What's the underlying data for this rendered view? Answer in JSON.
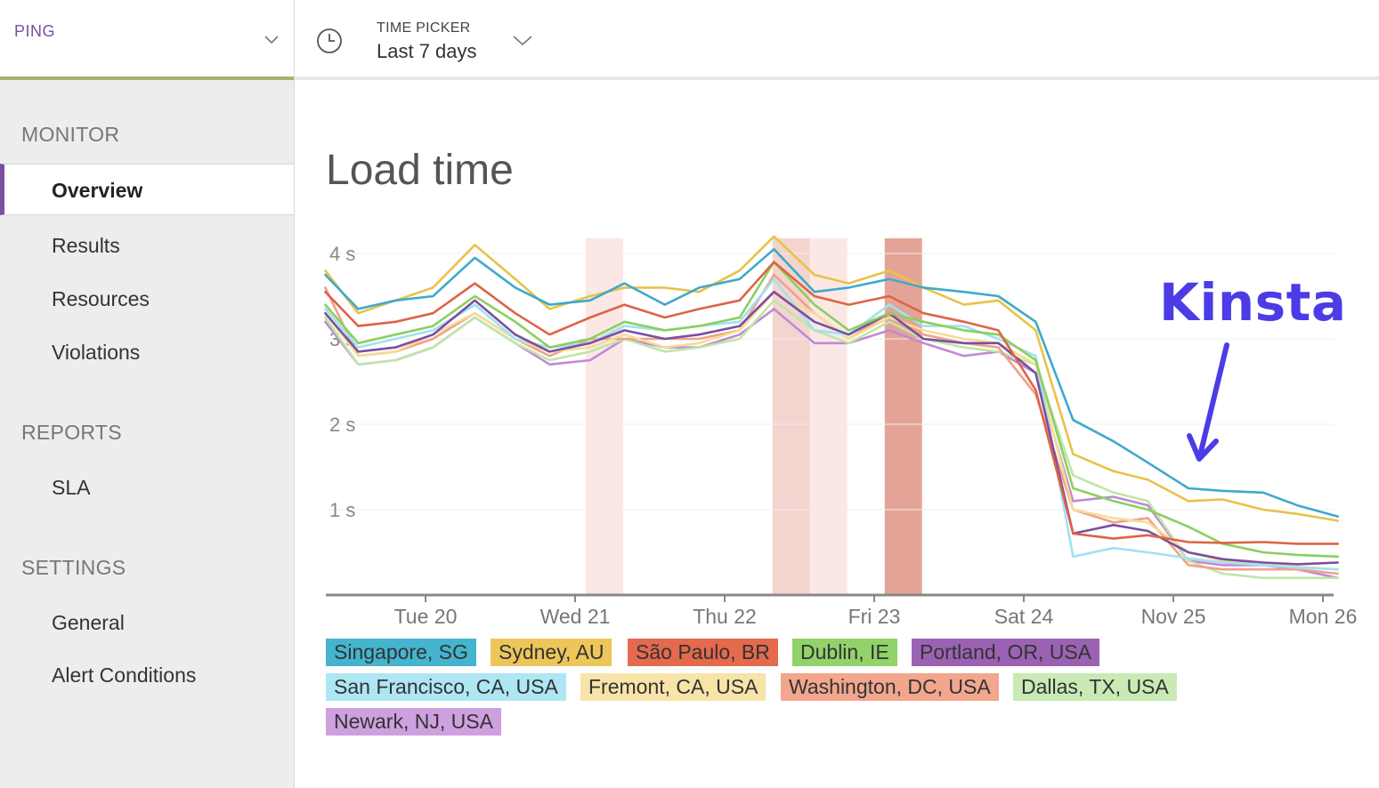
{
  "app": {
    "name": "PING"
  },
  "time_picker": {
    "label": "TIME PICKER",
    "value": "Last 7 days"
  },
  "sidebar": {
    "sections": [
      {
        "title": "MONITOR",
        "items": [
          "Overview",
          "Results",
          "Resources",
          "Violations"
        ]
      },
      {
        "title": "REPORTS",
        "items": [
          "SLA"
        ]
      },
      {
        "title": "SETTINGS",
        "items": [
          "General",
          "Alert Conditions"
        ]
      }
    ],
    "active_item": "Overview",
    "accent_color": "#7a4fa0"
  },
  "page": {
    "title": "Load time"
  },
  "annotation": {
    "text": "Kinsta",
    "color": "#4b3ce6"
  },
  "chart_data": {
    "type": "line",
    "title": "Load time",
    "xlabel": "",
    "ylabel": "",
    "x_tick_labels": [
      "Tue 20",
      "Wed 21",
      "Thu 22",
      "Fri 23",
      "Sat 24",
      "Nov 25",
      "Mon 26"
    ],
    "x_range": [
      -0.67,
      6.1
    ],
    "y_ticks": [
      {
        "value": 1,
        "label": "1 s"
      },
      {
        "value": 2,
        "label": "2 s"
      },
      {
        "value": 3,
        "label": "3 s"
      },
      {
        "value": 4,
        "label": "4 s"
      }
    ],
    "ylim": [
      0,
      4.2
    ],
    "grid": true,
    "x": [
      -0.67,
      -0.45,
      -0.2,
      0.05,
      0.33,
      0.6,
      0.83,
      1.1,
      1.33,
      1.6,
      1.83,
      2.1,
      2.33,
      2.6,
      2.83,
      3.1,
      3.33,
      3.6,
      3.83,
      4.08,
      4.33,
      4.6,
      4.83,
      5.1,
      5.33,
      5.6,
      5.83,
      6.1
    ],
    "highlight_bands": [
      {
        "from": 1.07,
        "to": 1.32,
        "intensity": "light"
      },
      {
        "from": 2.32,
        "to": 2.57,
        "intensity": "medium"
      },
      {
        "from": 2.57,
        "to": 2.82,
        "intensity": "light"
      },
      {
        "from": 3.07,
        "to": 3.32,
        "intensity": "strong"
      }
    ],
    "legend_position": "bottom",
    "series": [
      {
        "name": "Singapore, SG",
        "color": "#3fa9c9",
        "legend_bg": "#45b4cf",
        "values": [
          3.75,
          3.35,
          3.45,
          3.5,
          3.95,
          3.6,
          3.4,
          3.45,
          3.65,
          3.4,
          3.6,
          3.7,
          4.05,
          3.55,
          3.6,
          3.7,
          3.6,
          3.55,
          3.5,
          3.2,
          2.05,
          1.8,
          1.55,
          1.25,
          1.22,
          1.2,
          1.05,
          0.92
        ]
      },
      {
        "name": "Sydney, AU",
        "color": "#e8c24a",
        "legend_bg": "#edc65a",
        "values": [
          3.8,
          3.3,
          3.45,
          3.6,
          4.1,
          3.7,
          3.35,
          3.5,
          3.6,
          3.6,
          3.55,
          3.8,
          4.2,
          3.75,
          3.65,
          3.8,
          3.6,
          3.4,
          3.45,
          3.1,
          1.65,
          1.45,
          1.35,
          1.1,
          1.12,
          1.0,
          0.95,
          0.87
        ]
      },
      {
        "name": "São Paulo, BR",
        "color": "#df6347",
        "legend_bg": "#e4694d",
        "values": [
          3.55,
          3.15,
          3.2,
          3.3,
          3.65,
          3.3,
          3.05,
          3.25,
          3.4,
          3.25,
          3.35,
          3.45,
          3.9,
          3.5,
          3.4,
          3.5,
          3.3,
          3.2,
          3.1,
          2.4,
          0.72,
          0.66,
          0.7,
          0.62,
          0.61,
          0.62,
          0.6,
          0.6
        ]
      },
      {
        "name": "Dublin, IE",
        "color": "#8ccf5e",
        "legend_bg": "#91d26a",
        "values": [
          3.4,
          2.95,
          3.05,
          3.15,
          3.5,
          3.2,
          2.9,
          3.0,
          3.2,
          3.1,
          3.15,
          3.25,
          3.9,
          3.4,
          3.1,
          3.3,
          3.2,
          3.1,
          3.05,
          2.75,
          1.25,
          1.1,
          1.0,
          0.8,
          0.6,
          0.5,
          0.47,
          0.45
        ]
      },
      {
        "name": "Portland, OR, USA",
        "color": "#7a4fa0",
        "legend_bg": "#9b62b3",
        "values": [
          3.3,
          2.85,
          2.9,
          3.05,
          3.45,
          3.05,
          2.85,
          2.95,
          3.1,
          3.0,
          3.05,
          3.15,
          3.55,
          3.2,
          3.05,
          3.3,
          3.0,
          2.95,
          2.95,
          2.6,
          0.72,
          0.82,
          0.75,
          0.5,
          0.42,
          0.38,
          0.36,
          0.38
        ]
      },
      {
        "name": "San Francisco, CA, USA",
        "color": "#9fe2f2",
        "legend_bg": "#aee6f4",
        "values": [
          3.35,
          2.9,
          3.0,
          3.1,
          3.4,
          3.0,
          2.9,
          2.95,
          3.15,
          3.1,
          3.15,
          3.2,
          3.7,
          3.1,
          3.05,
          3.4,
          3.15,
          3.15,
          3.0,
          2.8,
          0.45,
          0.55,
          0.5,
          0.43,
          0.38,
          0.35,
          0.32,
          0.3
        ]
      },
      {
        "name": "Fremont, CA, USA",
        "color": "#f5dc96",
        "legend_bg": "#f8e4a8",
        "values": [
          3.3,
          2.8,
          2.85,
          3.05,
          3.3,
          3.0,
          2.85,
          2.9,
          3.05,
          2.9,
          2.95,
          3.1,
          3.55,
          3.3,
          3.0,
          3.25,
          3.1,
          3.0,
          2.95,
          2.7,
          1.0,
          0.9,
          0.85,
          0.5,
          0.4,
          0.35,
          0.33,
          0.3
        ]
      },
      {
        "name": "Washington, DC, USA",
        "color": "#f0a08a",
        "legend_bg": "#f2a68e",
        "values": [
          3.6,
          2.8,
          2.85,
          3.0,
          3.3,
          3.0,
          2.8,
          3.0,
          3.0,
          3.0,
          3.0,
          3.1,
          3.75,
          3.3,
          3.0,
          3.3,
          3.05,
          2.95,
          2.9,
          2.35,
          1.0,
          0.85,
          0.9,
          0.35,
          0.3,
          0.3,
          0.3,
          0.25
        ]
      },
      {
        "name": "Dallas, TX, USA",
        "color": "#bfe6a6",
        "legend_bg": "#c9eab4",
        "values": [
          3.25,
          2.7,
          2.75,
          2.9,
          3.25,
          2.95,
          2.75,
          2.85,
          3.0,
          2.85,
          2.9,
          3.0,
          3.45,
          3.1,
          2.95,
          3.2,
          3.0,
          2.9,
          2.85,
          2.7,
          1.4,
          1.2,
          1.1,
          0.4,
          0.25,
          0.2,
          0.2,
          0.2
        ]
      },
      {
        "name": "Newark, NJ, USA",
        "color": "#c08ad6",
        "legend_bg": "#cfa0e0",
        "values": [
          3.2,
          2.7,
          2.75,
          2.9,
          3.25,
          2.95,
          2.7,
          2.75,
          3.0,
          2.9,
          2.9,
          3.05,
          3.35,
          2.95,
          2.95,
          3.1,
          2.95,
          2.8,
          2.85,
          2.6,
          1.1,
          1.15,
          1.05,
          0.4,
          0.35,
          0.35,
          0.3,
          0.2
        ]
      }
    ]
  }
}
